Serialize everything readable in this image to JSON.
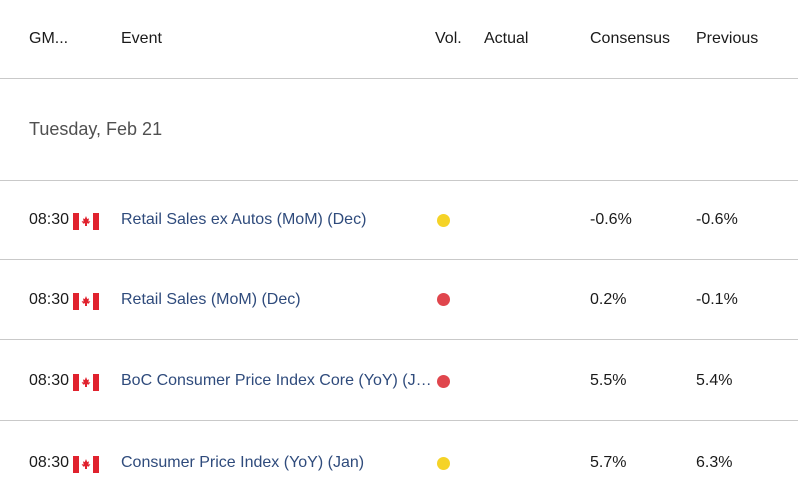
{
  "header": {
    "gmt": "GM...",
    "event": "Event",
    "vol": "Vol.",
    "actual": "Actual",
    "consensus": "Consensus",
    "previous": "Previous"
  },
  "day": {
    "title": "Tuesday, Feb 21"
  },
  "rows": [
    {
      "time": "08:30",
      "event": "Retail Sales ex Autos (MoM) (Dec)",
      "volatility": "medium",
      "vol_color": "#f5d327",
      "actual": "",
      "consensus": "-0.6%",
      "previous": "-0.6%"
    },
    {
      "time": "08:30",
      "event": "Retail Sales (MoM) (Dec)",
      "volatility": "high",
      "vol_color": "#e0464d",
      "actual": "",
      "consensus": "0.2%",
      "previous": "-0.1%"
    },
    {
      "time": "08:30",
      "event": "BoC Consumer Price Index Core (YoY) (Jan)",
      "volatility": "high",
      "vol_color": "#e0464d",
      "actual": "",
      "consensus": "5.5%",
      "previous": "5.4%"
    },
    {
      "time": "08:30",
      "event": "Consumer Price Index (YoY) (Jan)",
      "volatility": "medium",
      "vol_color": "#f5d327",
      "actual": "",
      "consensus": "5.7%",
      "previous": "6.3%"
    }
  ],
  "colors": {
    "flag_red": "#e0222e",
    "divider": "#c9c9c9",
    "event_text": "#2f4b7c"
  },
  "icons": {
    "country_flag": "canada-flag-icon"
  }
}
